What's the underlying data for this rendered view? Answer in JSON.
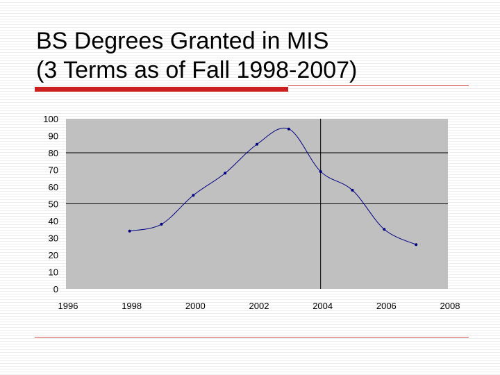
{
  "slide": {
    "title_line1": "BS Degrees Granted in MIS",
    "title_line2": "(3 Terms as of Fall 1998-2007)",
    "colors": {
      "accent_bar": "#cc1f1f",
      "accent_line": "#cc4444",
      "footer_line": "#cc4444"
    }
  },
  "chart_data": {
    "type": "scatter",
    "smoothed_line": true,
    "title": "",
    "xlabel": "",
    "ylabel": "",
    "xlim": [
      1996,
      2008
    ],
    "ylim": [
      0,
      100
    ],
    "x_ticks": [
      1996,
      1998,
      2000,
      2002,
      2004,
      2006,
      2008
    ],
    "y_ticks": [
      0,
      10,
      20,
      30,
      40,
      50,
      60,
      70,
      80,
      90,
      100
    ],
    "grid": {
      "horizontal": [
        50,
        80
      ],
      "vertical": [
        2004
      ]
    },
    "legend": "none",
    "colors": {
      "plot_background": "#c0c0c0",
      "series": "#000080",
      "gridline": "#000000"
    },
    "series": [
      {
        "x": [
          1998,
          1999,
          2000,
          2001,
          2002,
          2003,
          2004,
          2005,
          2006,
          2007
        ],
        "y": [
          34,
          38,
          55,
          68,
          85,
          94,
          69,
          58,
          35,
          26
        ]
      }
    ]
  }
}
